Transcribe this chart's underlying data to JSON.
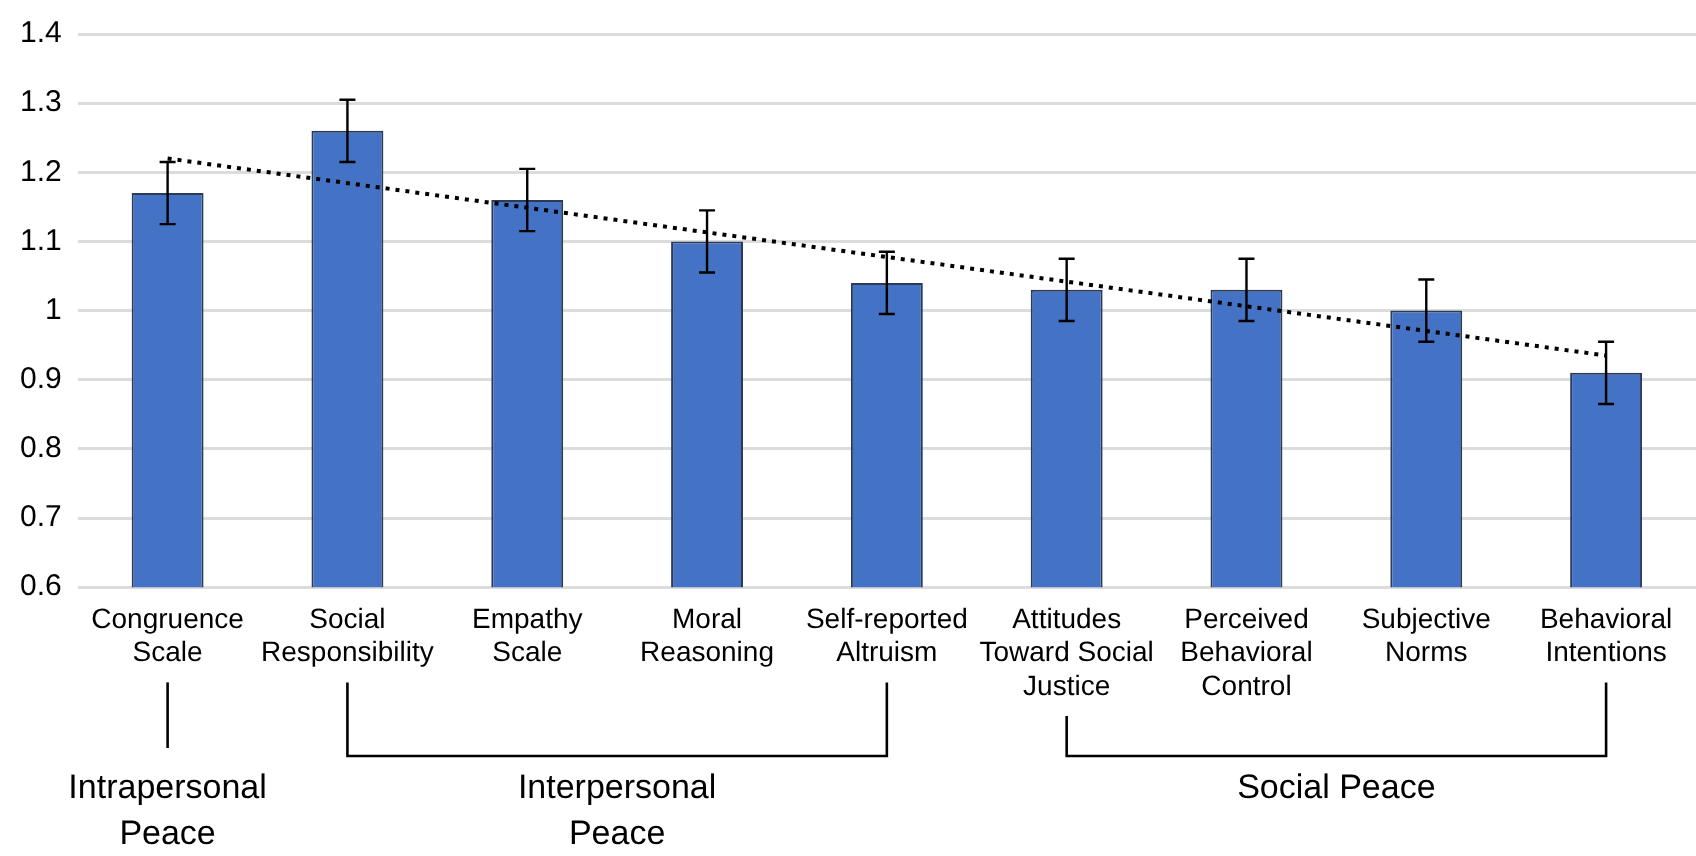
{
  "chart_data": {
    "type": "bar",
    "categories": [
      "Congruence Scale",
      "Social Responsibility",
      "Empathy Scale",
      "Moral Reasoning",
      "Self-reported Altruism",
      "Attitudes Toward Social Justice",
      "Perceived Behavioral Control",
      "Subjective Norms",
      "Behavioral Intentions"
    ],
    "series": [
      {
        "color": "#4472c4",
        "values": [
          1.17,
          1.26,
          1.16,
          1.1,
          1.04,
          1.03,
          1.03,
          1.0,
          0.91
        ],
        "errors": [
          0.045,
          0.045,
          0.045,
          0.045,
          0.045,
          0.045,
          0.045,
          0.045,
          0.045
        ]
      },
      {
        "type": "line",
        "color": "#000000",
        "x": [
          "Congruence Scale",
          "Behavioral Intentions"
        ],
        "values": [
          1.22,
          0.935
        ],
        "line_style": "dotted",
        "marker": "none"
      }
    ],
    "ylim": [
      0.6,
      1.4
    ],
    "yticks": [
      0.6,
      {
        "value": 0.7,
        "label": "0.7"
      },
      {
        "value": 0.8,
        "label": "0.8"
      },
      {
        "value": 0.9,
        "label": "0.9"
      },
      1,
      {
        "value": 1.1,
        "label": "1.1"
      },
      {
        "value": 1.2,
        "label": "1.2"
      },
      {
        "value": 1.3,
        "label": "1.3"
      },
      {
        "value": 1.4,
        "label": "1.4"
      }
    ],
    "grid": "y",
    "legend": false,
    "annotations": [
      "Intrapersonal Peace",
      "Interpersonal Peace",
      "Social Peace"
    ]
  }
}
